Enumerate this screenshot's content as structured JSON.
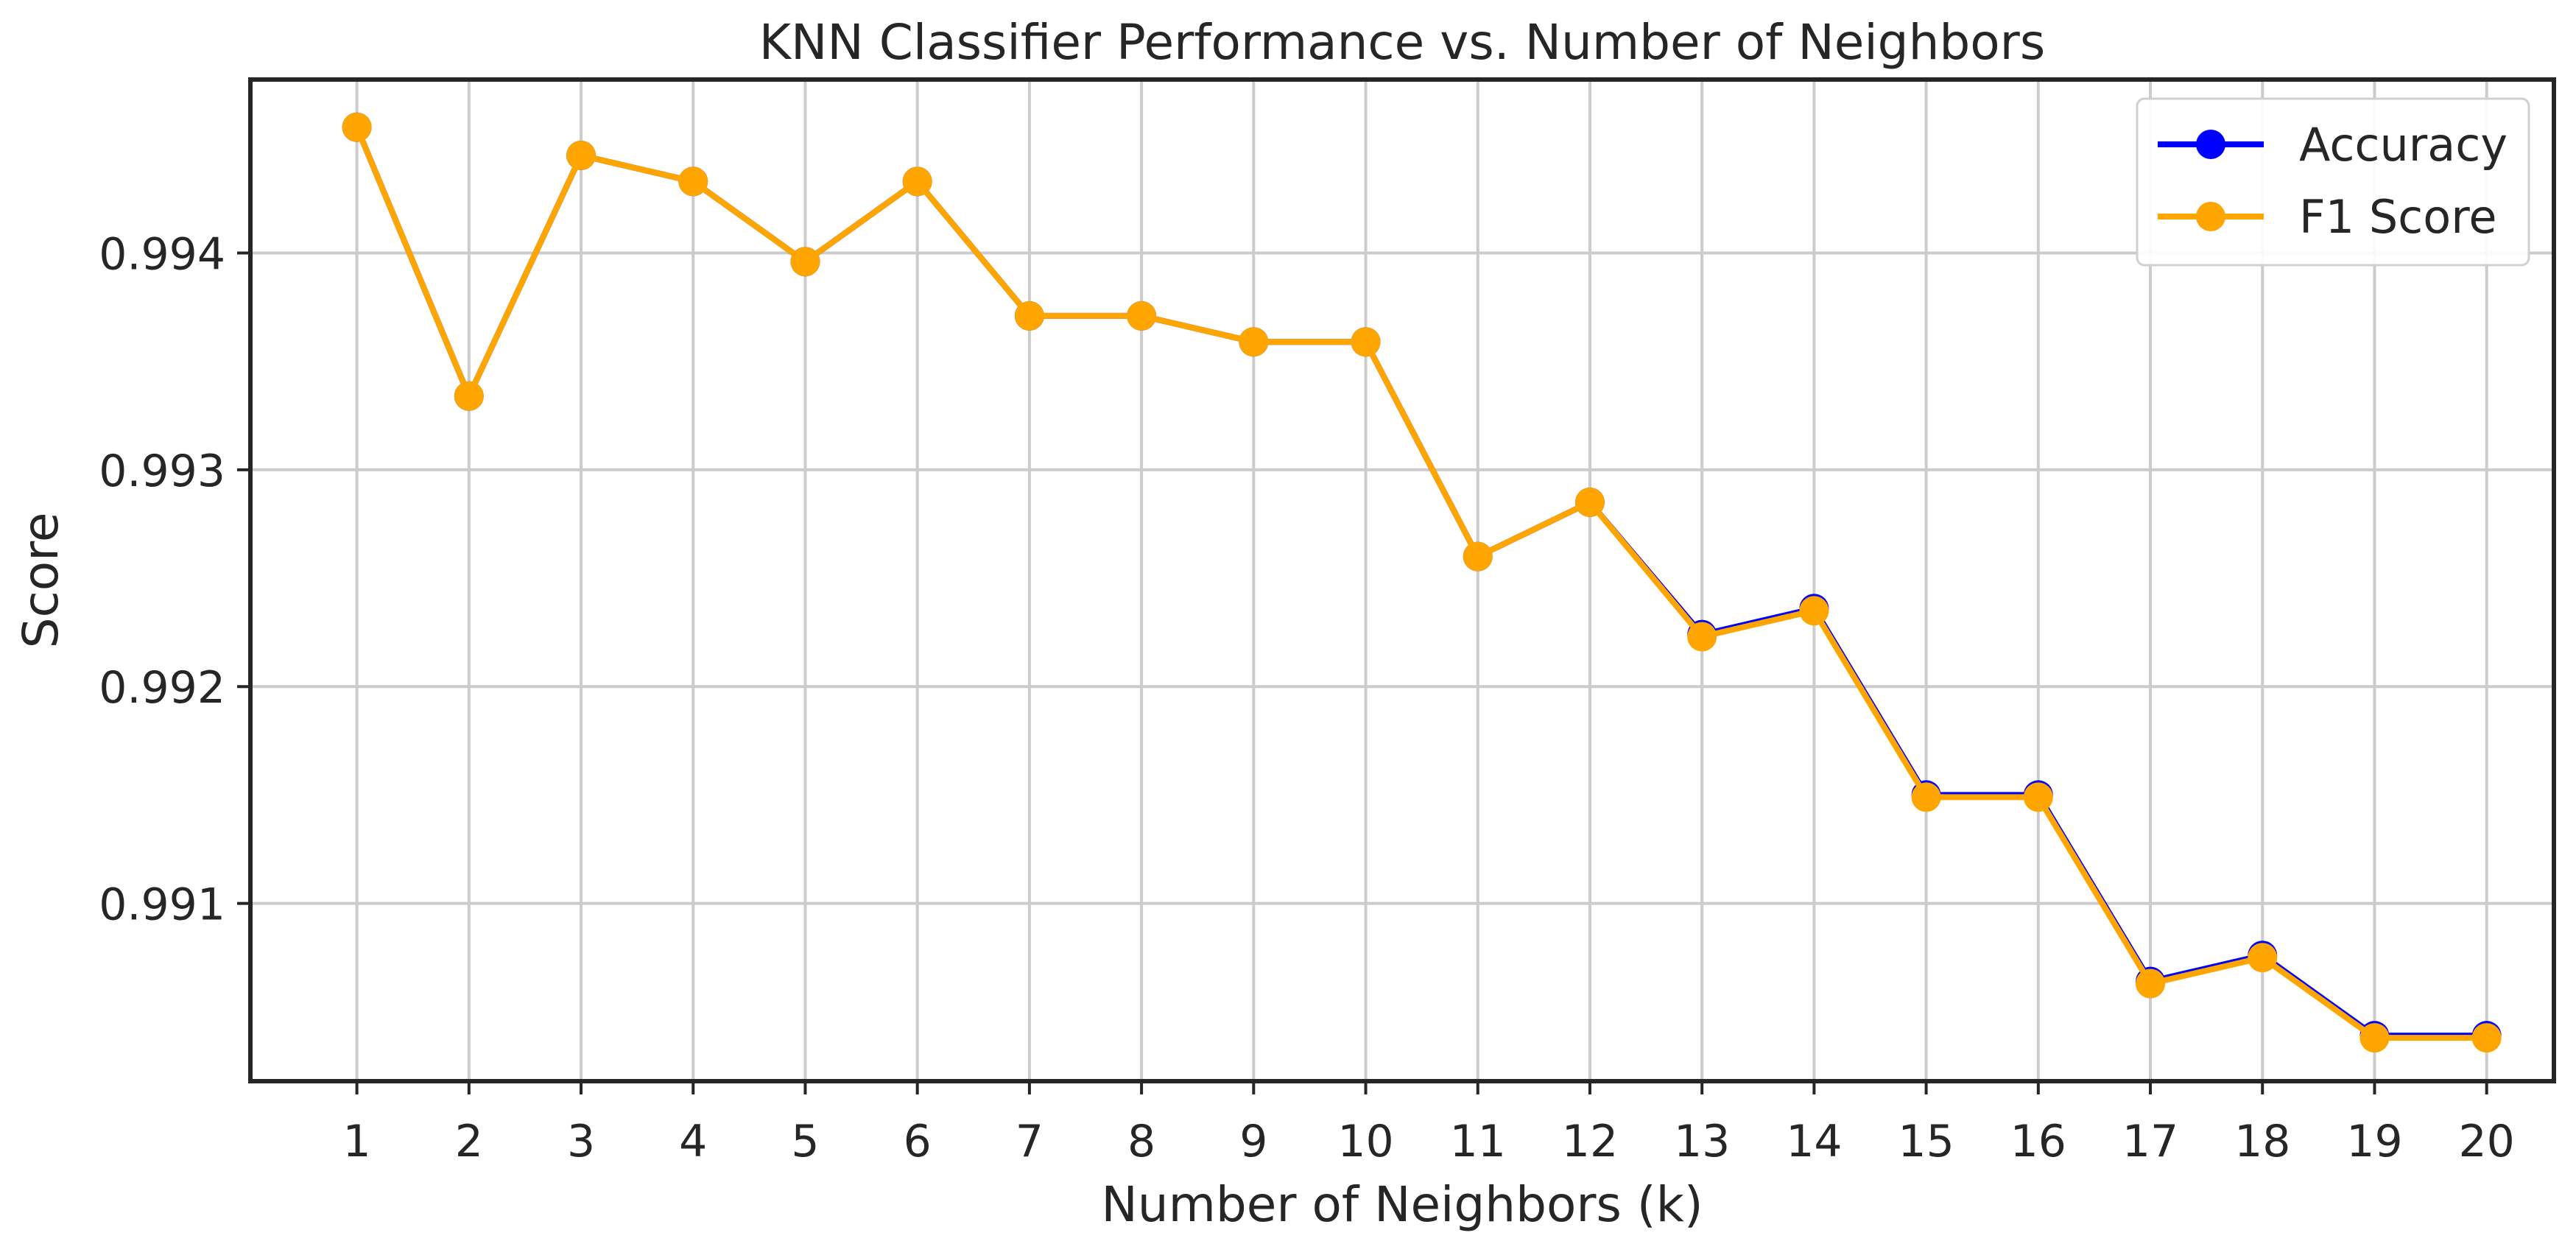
{
  "chart_data": {
    "type": "line",
    "title": "KNN Classifier Performance vs. Number of Neighbors",
    "xlabel": "Number of Neighbors (k)",
    "ylabel": "Score",
    "x": [
      1,
      2,
      3,
      4,
      5,
      6,
      7,
      8,
      9,
      10,
      11,
      12,
      13,
      14,
      15,
      16,
      17,
      18,
      19,
      20
    ],
    "x_ticks": [
      "1",
      "2",
      "3",
      "4",
      "5",
      "6",
      "7",
      "8",
      "9",
      "10",
      "11",
      "12",
      "13",
      "14",
      "15",
      "16",
      "17",
      "18",
      "19",
      "20"
    ],
    "xlim": [
      0.05,
      20.6
    ],
    "ylim": [
      0.99018,
      0.9948
    ],
    "y_ticks": [
      0.991,
      0.992,
      0.993,
      0.994
    ],
    "y_tick_labels": [
      "0.991",
      "0.992",
      "0.993",
      "0.994"
    ],
    "grid": true,
    "legend_position": "top-right",
    "series": [
      {
        "name": "Accuracy",
        "color": "#0000ff",
        "marker": "circle",
        "values": [
          0.99458,
          0.99334,
          0.99445,
          0.99433,
          0.99396,
          0.99433,
          0.99371,
          0.99371,
          0.99359,
          0.99359,
          0.9926,
          0.99285,
          0.99224,
          0.99236,
          0.9915,
          0.9915,
          0.99064,
          0.99076,
          0.99039,
          0.99039
        ]
      },
      {
        "name": "F1 Score",
        "color": "#ffa500",
        "marker": "circle",
        "values": [
          0.99458,
          0.99334,
          0.99445,
          0.99433,
          0.99396,
          0.99433,
          0.99371,
          0.99371,
          0.99359,
          0.99359,
          0.9926,
          0.99285,
          0.99223,
          0.99235,
          0.99149,
          0.99149,
          0.99063,
          0.99075,
          0.99038,
          0.99038
        ]
      }
    ]
  }
}
